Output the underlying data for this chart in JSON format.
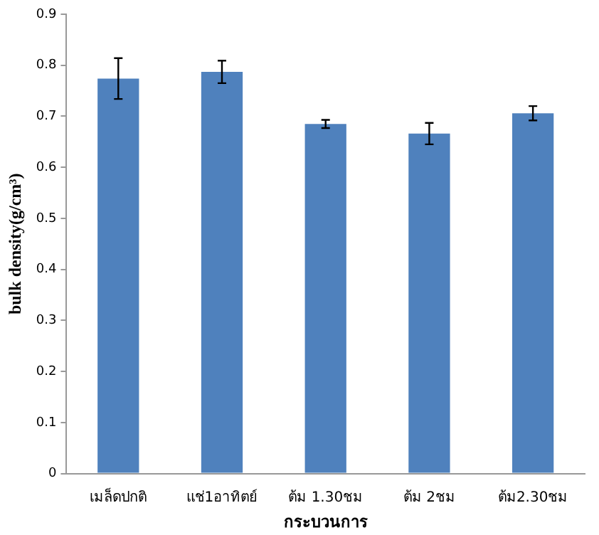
{
  "chart_data": {
    "type": "bar",
    "xlabel": "กระบวนการ",
    "ylabel": "bulk density(g/cm³)",
    "categories": [
      "เมล็ดปกติ",
      "แช่1อาทิตย์",
      "ต้ม 1.30ชม",
      "ต้ม 2ชม",
      "ต้ม2.30ชม"
    ],
    "values": [
      0.774,
      0.787,
      0.685,
      0.666,
      0.706
    ],
    "errors": [
      0.04,
      0.022,
      0.008,
      0.021,
      0.014
    ],
    "color": "#4f81bd",
    "ylim": [
      0,
      0.9
    ],
    "yticks": [
      0,
      0.1,
      0.2,
      0.3,
      0.4,
      0.5,
      0.6,
      0.7,
      0.8,
      0.9
    ],
    "grid": false,
    "legend": false
  }
}
